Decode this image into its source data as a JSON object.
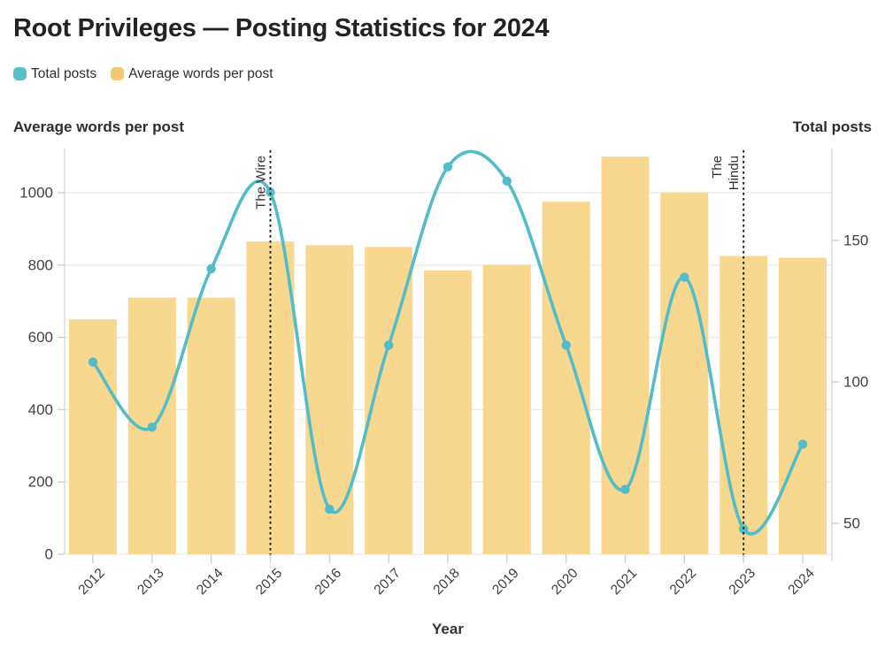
{
  "title": "Root Privileges — Posting Statistics for 2024",
  "legend": [
    {
      "label": "Total posts",
      "color": "#58c0ca"
    },
    {
      "label": "Average words per post",
      "color": "#f2c96d"
    }
  ],
  "left_axis": {
    "title": "Average words per post",
    "ticks": [
      0,
      200,
      400,
      600,
      800,
      1000
    ]
  },
  "right_axis": {
    "title": "Total posts",
    "ticks": [
      50,
      100,
      150
    ]
  },
  "x_axis": {
    "title": "Year"
  },
  "colors": {
    "bar": "#f8d78e",
    "line": "#52bdc9",
    "grid": "#ebebeb",
    "axis_line": "#d8d8d8",
    "tick_mark": "#cccccc",
    "tick_text": "#424242",
    "annotation_text": "#333333",
    "rule": "#1a1a1a",
    "axis_label_text": "#343434"
  },
  "chart_data": {
    "type": "combo",
    "categories": [
      "2012",
      "2013",
      "2014",
      "2015",
      "2016",
      "2017",
      "2018",
      "2019",
      "2020",
      "2021",
      "2022",
      "2023",
      "2024"
    ],
    "series": [
      {
        "name": "Total posts",
        "type": "line",
        "axis": "right",
        "color": "#52bdc9",
        "values": [
          107,
          84,
          140,
          167,
          55,
          113,
          176,
          171,
          113,
          62,
          137,
          48,
          78
        ]
      },
      {
        "name": "Average words per post",
        "type": "bar",
        "axis": "left",
        "color": "#f8d78e",
        "values": [
          650,
          710,
          710,
          865,
          855,
          850,
          785,
          800,
          975,
          1100,
          1000,
          825,
          820
        ]
      }
    ],
    "title": "Root Privileges — Posting Statistics for 2024",
    "xlabel": "Year",
    "left_axis_label": "Average words per post",
    "left_ylim": [
      0,
      1122
    ],
    "left_ticks": [
      0,
      200,
      400,
      600,
      800,
      1000
    ],
    "right_axis_label": "Total posts",
    "right_ylim": [
      39,
      183
    ],
    "right_ticks": [
      50,
      100,
      150
    ],
    "grid": true,
    "legend_position": "top-left",
    "annotations": [
      {
        "category": "2015",
        "label": "The Wire",
        "lines": [
          "The Wire"
        ]
      },
      {
        "category": "2023",
        "label": "The Hindu",
        "lines": [
          "The",
          "Hindu"
        ]
      }
    ]
  }
}
